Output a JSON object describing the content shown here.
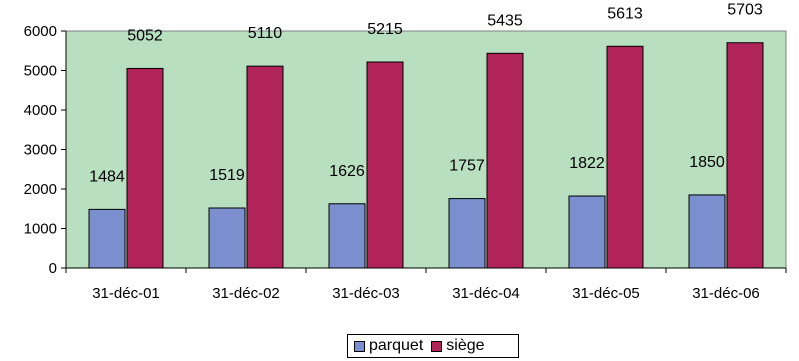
{
  "chart_data": {
    "type": "bar",
    "categories": [
      "31-déc-01",
      "31-déc-02",
      "31-déc-03",
      "31-déc-04",
      "31-déc-05",
      "31-déc-06"
    ],
    "series": [
      {
        "name": "parquet",
        "values": [
          1484,
          1519,
          1626,
          1757,
          1822,
          1850
        ],
        "color": "#7b8fcf"
      },
      {
        "name": "siège",
        "values": [
          5052,
          5110,
          5215,
          5435,
          5613,
          5703
        ],
        "color": "#b0245a"
      }
    ],
    "ylim": [
      0,
      6000
    ],
    "yticks": [
      0,
      1000,
      2000,
      3000,
      4000,
      5000,
      6000
    ],
    "grid": false,
    "plot_background": "#b9dfc1",
    "legend_position": "bottom"
  }
}
